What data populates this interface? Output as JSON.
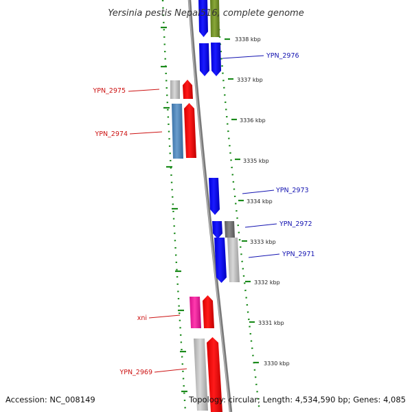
{
  "title": "Yersinia pestis Nepal516, complete genome",
  "footer": {
    "accession": "Accession: NC_008149",
    "topology": "Topology: circular; Length: 4,534,590 bp; Genes: 4,085"
  },
  "colors": {
    "backbone": "#888888",
    "ruler": "#1a8a1a",
    "forward_label": "#1010b0",
    "reverse_label": "#cc1010"
  },
  "ticks": [
    {
      "label": "3338 kbp"
    },
    {
      "label": "3337 kbp"
    },
    {
      "label": "3336 kbp"
    },
    {
      "label": "3335 kbp"
    },
    {
      "label": "3334 kbp"
    },
    {
      "label": "3333 kbp"
    },
    {
      "label": "3332 kbp"
    },
    {
      "label": "3331 kbp"
    },
    {
      "label": "3330 kbp"
    }
  ],
  "gene_labels": [
    {
      "text": "YPN_2976",
      "strand": "forward"
    },
    {
      "text": "YPN_2975",
      "strand": "reverse"
    },
    {
      "text": "YPN_2974",
      "strand": "reverse"
    },
    {
      "text": "YPN_2973",
      "strand": "forward"
    },
    {
      "text": "YPN_2972",
      "strand": "forward"
    },
    {
      "text": "YPN_2971",
      "strand": "forward"
    },
    {
      "text": "xni",
      "strand": "reverse"
    },
    {
      "text": "YPN_2969",
      "strand": "reverse"
    }
  ]
}
